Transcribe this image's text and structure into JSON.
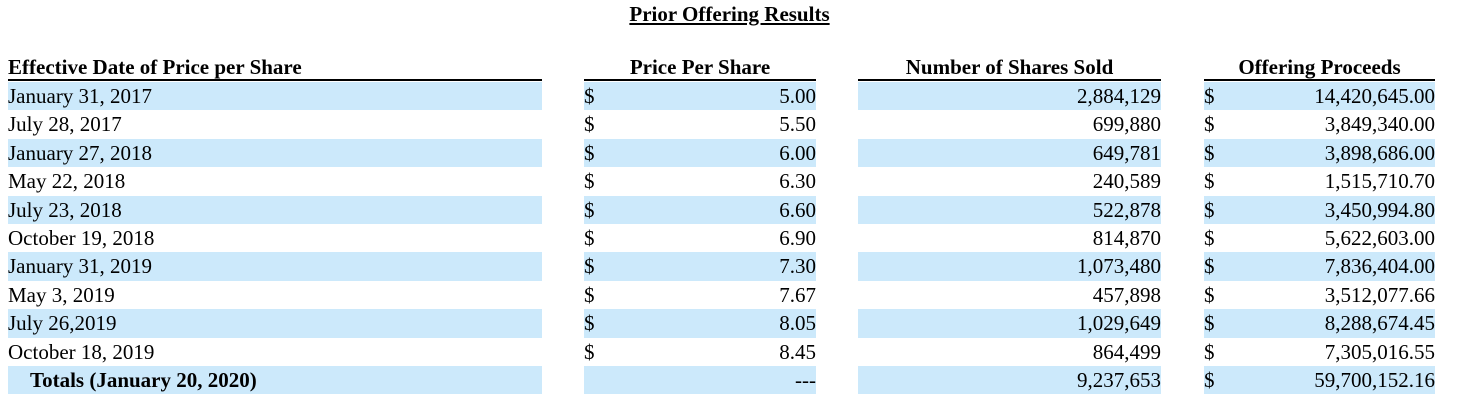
{
  "title": "Prior Offering Results",
  "headers": {
    "date": "Effective Date of Price per Share",
    "price": "Price Per Share",
    "shares": "Number of Shares Sold",
    "proceeds": "Offering Proceeds"
  },
  "rows": [
    {
      "date": "January 31, 2017",
      "dollar1": "$",
      "price": "5.00",
      "shares": "2,884,129",
      "dollar2": "$",
      "proceeds": "14,420,645.00"
    },
    {
      "date": "July 28, 2017",
      "dollar1": "$",
      "price": "5.50",
      "shares": "699,880",
      "dollar2": "$",
      "proceeds": "3,849,340.00"
    },
    {
      "date": "January 27, 2018",
      "dollar1": "$",
      "price": "6.00",
      "shares": "649,781",
      "dollar2": "$",
      "proceeds": "3,898,686.00"
    },
    {
      "date": "May 22, 2018",
      "dollar1": "$",
      "price": "6.30",
      "shares": "240,589",
      "dollar2": "$",
      "proceeds": "1,515,710.70"
    },
    {
      "date": "July 23, 2018",
      "dollar1": "$",
      "price": "6.60",
      "shares": "522,878",
      "dollar2": "$",
      "proceeds": "3,450,994.80"
    },
    {
      "date": "October 19, 2018",
      "dollar1": "$",
      "price": "6.90",
      "shares": "814,870",
      "dollar2": "$",
      "proceeds": "5,622,603.00"
    },
    {
      "date": "January 31, 2019",
      "dollar1": "$",
      "price": "7.30",
      "shares": "1,073,480",
      "dollar2": "$",
      "proceeds": "7,836,404.00"
    },
    {
      "date": "May 3, 2019",
      "dollar1": "$",
      "price": "7.67",
      "shares": "457,898",
      "dollar2": "$",
      "proceeds": "3,512,077.66"
    },
    {
      "date": "July 26,2019",
      "dollar1": "$",
      "price": "8.05",
      "shares": "1,029,649",
      "dollar2": "$",
      "proceeds": "8,288,674.45"
    },
    {
      "date": "October 18, 2019",
      "dollar1": "$",
      "price": "8.45",
      "shares": "864,499",
      "dollar2": "$",
      "proceeds": "7,305,016.55"
    }
  ],
  "totals": {
    "label": "Totals (January 20, 2020)",
    "price": "---",
    "shares": "9,237,653",
    "dollar2": "$",
    "proceeds": "59,700,152.16"
  },
  "colors": {
    "row_shading": "#cce9fb",
    "text": "#000000"
  }
}
